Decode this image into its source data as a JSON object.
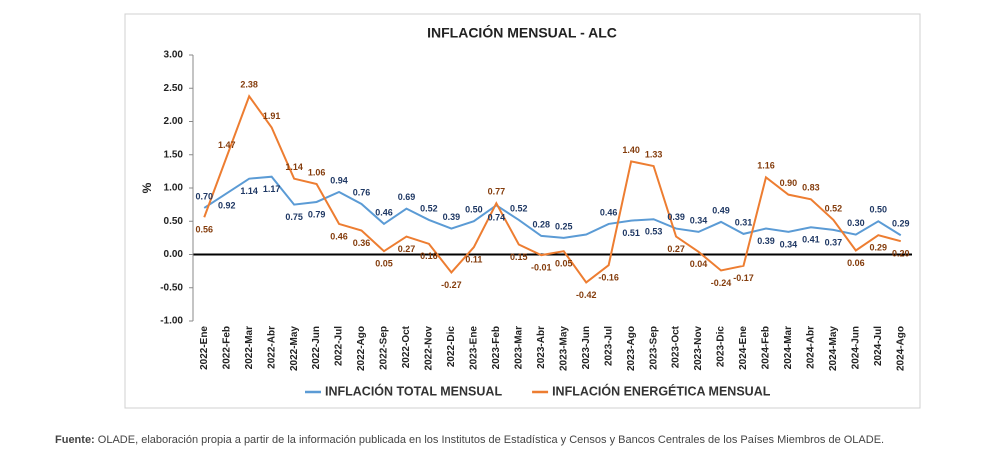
{
  "chart_data": {
    "type": "line",
    "title": "INFLACIÓN MENSUAL - ALC",
    "y_label": "%",
    "categories": [
      "2022-Ene",
      "2022-Feb",
      "2022-Mar",
      "2022-Abr",
      "2022-May",
      "2022-Jun",
      "2022-Jul",
      "2022-Ago",
      "2022-Sep",
      "2022-Oct",
      "2022-Nov",
      "2022-Dic",
      "2023-Ene",
      "2023-Feb",
      "2023-Mar",
      "2023-Abr",
      "2023-May",
      "2023-Jun",
      "2023-Jul",
      "2023-Ago",
      "2023-Sep",
      "2023-Oct",
      "2023-Nov",
      "2023-Dic",
      "2024-Ene",
      "2024-Feb",
      "2024-Mar",
      "2024-Abr",
      "2024-May",
      "2024-Jun",
      "2024-Jul",
      "2024-Ago"
    ],
    "series": [
      {
        "name": "INFLACIÓN TOTAL MENSUAL",
        "color": "#5b9bd5",
        "label_color": "#1f3864",
        "values": [
          0.7,
          0.92,
          1.14,
          1.17,
          0.75,
          0.79,
          0.94,
          0.76,
          0.46,
          0.69,
          0.52,
          0.39,
          0.5,
          0.74,
          0.52,
          0.28,
          0.25,
          0.3,
          0.46,
          0.51,
          0.53,
          0.39,
          0.34,
          0.49,
          0.31,
          0.39,
          0.34,
          0.41,
          0.37,
          0.3,
          0.5,
          0.29
        ],
        "value_labels": [
          "0.70",
          "0.92",
          "1.14",
          "1.17",
          "0.75",
          "0.79",
          "0.94",
          "0.76",
          "0.46",
          "0.69",
          "0.52",
          "0.39",
          "0.50",
          "0.74",
          "0.52",
          "0.28",
          "0.25",
          null,
          "0.46",
          "0.51",
          "0.53",
          "0.39",
          "0.34",
          "0.49",
          "0.31",
          "0.39",
          "0.34",
          "0.41",
          "0.37",
          "0.30",
          "0.50",
          "0.29"
        ]
      },
      {
        "name": "INFLACIÓN ENERGÉTICA MENSUAL",
        "color": "#ed7d31",
        "label_color": "#843c0c",
        "values": [
          0.56,
          1.47,
          2.38,
          1.91,
          1.14,
          1.06,
          0.46,
          0.36,
          0.05,
          0.27,
          0.16,
          -0.27,
          0.11,
          0.77,
          0.15,
          -0.01,
          0.05,
          -0.42,
          -0.16,
          1.4,
          1.33,
          0.27,
          0.04,
          -0.24,
          -0.17,
          1.16,
          0.9,
          0.83,
          0.52,
          0.06,
          0.29,
          0.2
        ],
        "value_labels": [
          "0.56",
          "1.47",
          "2.38",
          "1.91",
          "1.14",
          "1.06",
          "0.46",
          "0.36",
          "0.05",
          "0.27",
          "0.16",
          "-0.27",
          "0.11",
          "0.77",
          "0.15",
          "-0.01",
          "0.05",
          "-0.42",
          "-0.16",
          "1.40",
          "1.33",
          "0.27",
          "0.04",
          "-0.24",
          "-0.17",
          "1.16",
          "0.90",
          "0.83",
          "0.52",
          "0.06",
          "0.29",
          "0.20"
        ]
      }
    ],
    "ylim": [
      -1,
      3
    ],
    "yticks": [
      {
        "value": -1,
        "label": "-1.00"
      },
      {
        "value": -0.5,
        "label": "-0.50"
      },
      {
        "value": 0,
        "label": "0.00"
      },
      {
        "value": 0.5,
        "label": "0.50"
      },
      {
        "value": 1,
        "label": "1.00"
      },
      {
        "value": 1.5,
        "label": "1.50"
      },
      {
        "value": 2,
        "label": "2.00"
      },
      {
        "value": 2.5,
        "label": "2.50"
      },
      {
        "value": 3,
        "label": "3.00"
      }
    ],
    "grid": false,
    "legend": "bottom"
  },
  "source_label": "Fuente:",
  "source_text": "OLADE, elaboración propia a partir de la información publicada en los Institutos de Estadística y Censos y Bancos Centrales de los Países Miembros de OLADE."
}
